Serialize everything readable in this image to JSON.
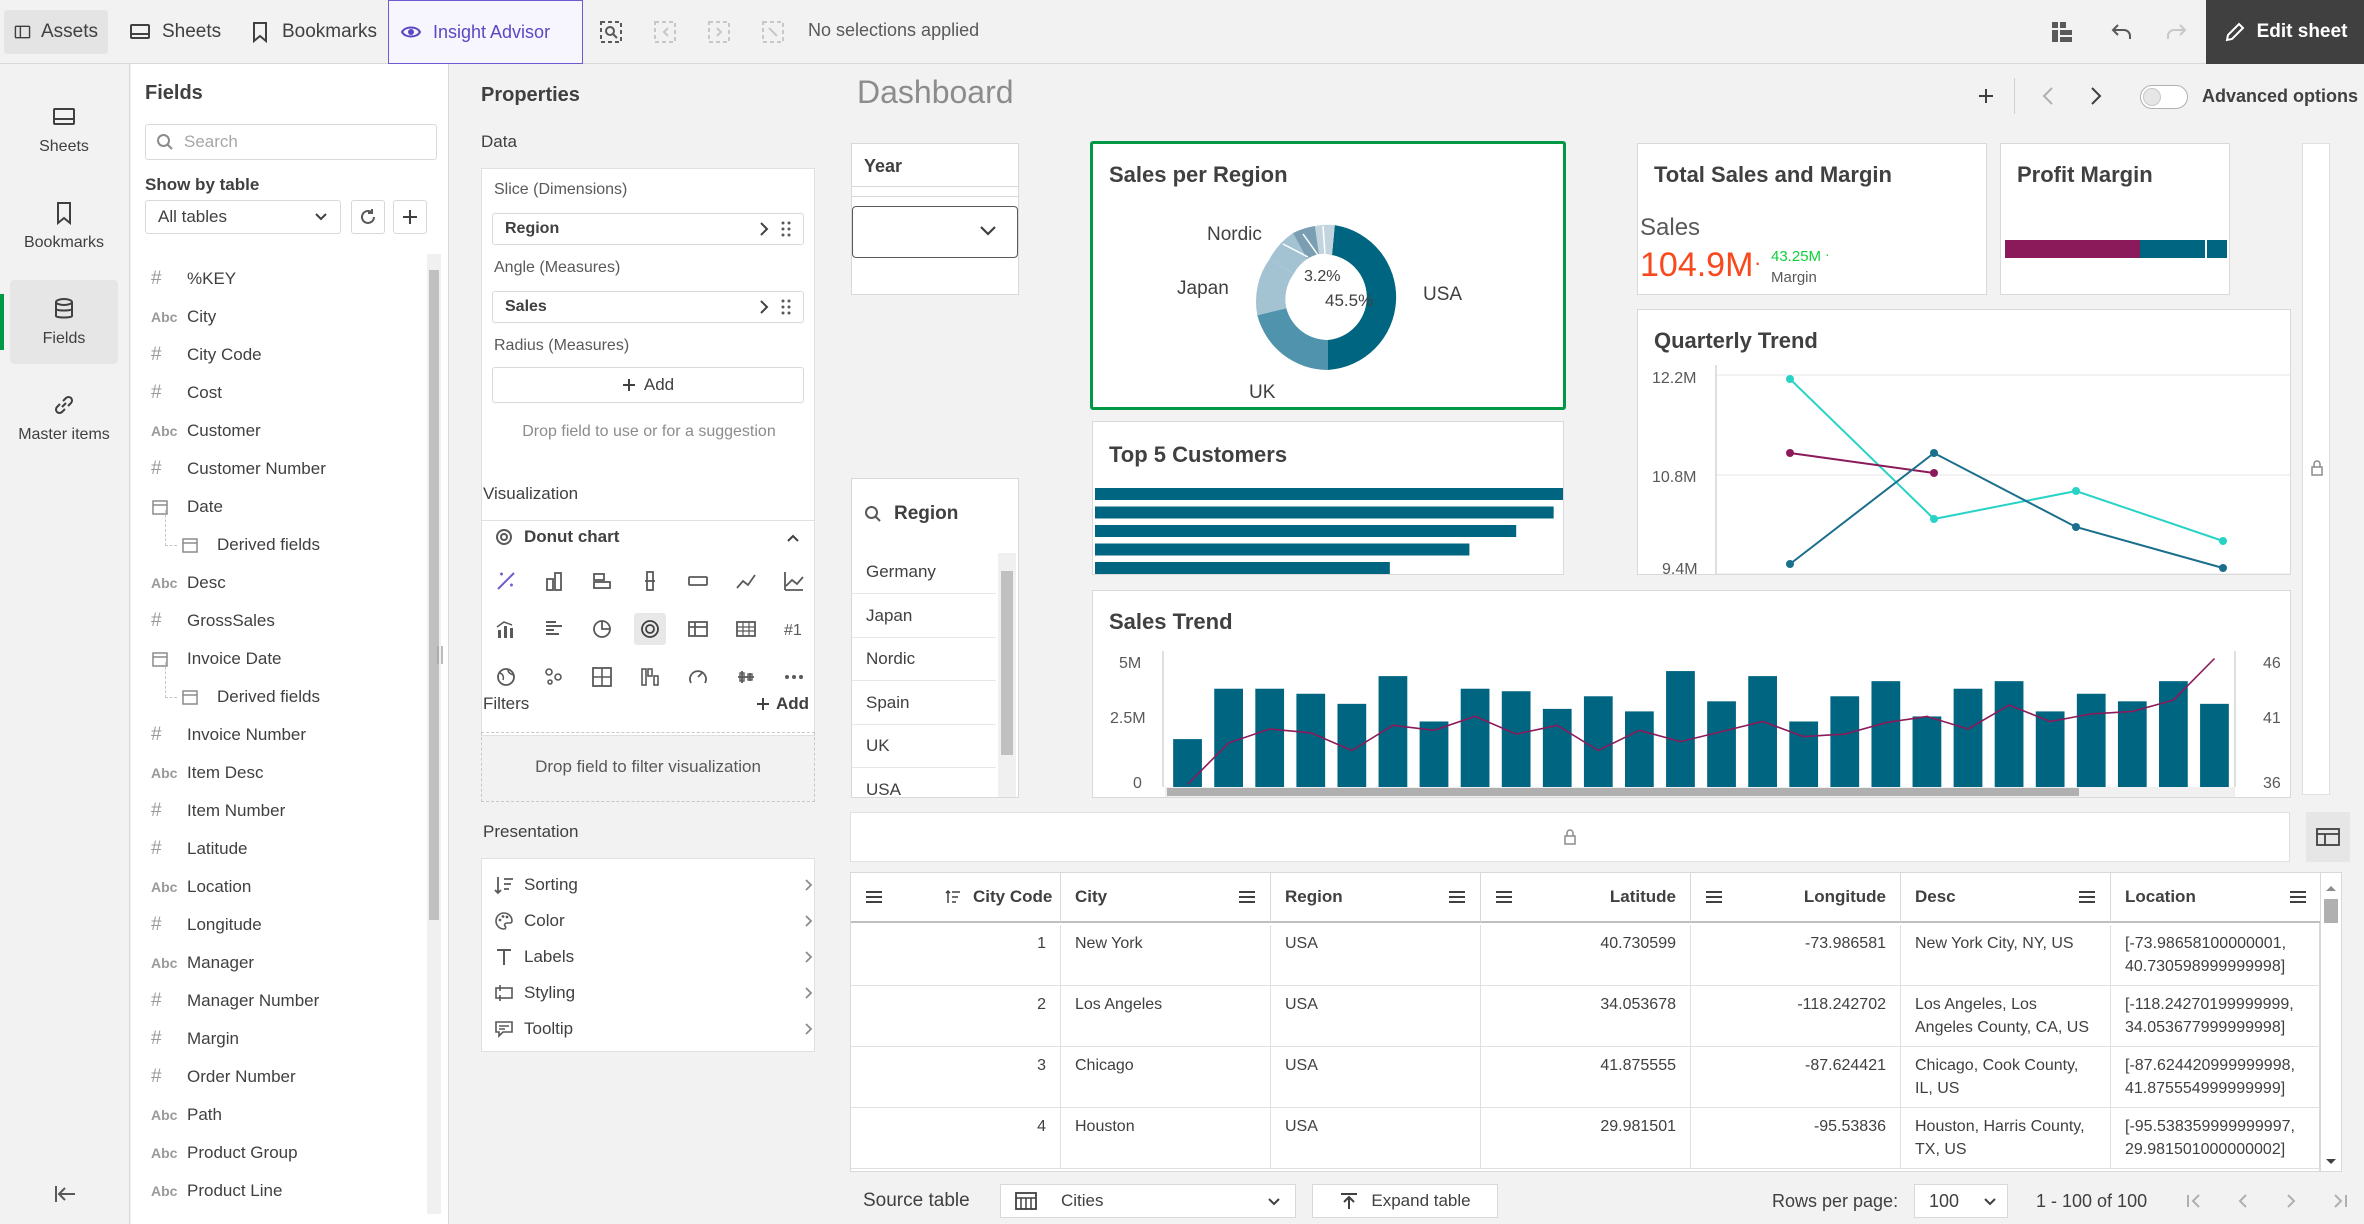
{
  "topbar": {
    "assets": "Assets",
    "sheets": "Sheets",
    "bookmarks": "Bookmarks",
    "insight": "Insight Advisor",
    "selections": "No selections applied",
    "edit_sheet": "Edit sheet"
  },
  "leftnav": {
    "sheets": "Sheets",
    "bookmarks": "Bookmarks",
    "fields": "Fields",
    "master": "Master items"
  },
  "fields_panel": {
    "title": "Fields",
    "search_placeholder": "Search",
    "show_by": "Show by table",
    "table_select": "All tables",
    "items": [
      {
        "type": "#",
        "name": "%KEY"
      },
      {
        "type": "Abc",
        "name": "City"
      },
      {
        "type": "#",
        "name": "City Code"
      },
      {
        "type": "#",
        "name": "Cost"
      },
      {
        "type": "Abc",
        "name": "Customer"
      },
      {
        "type": "#",
        "name": "Customer Number"
      },
      {
        "type": "date",
        "name": "Date"
      },
      {
        "type": "derived",
        "name": "Derived fields"
      },
      {
        "type": "Abc",
        "name": "Desc"
      },
      {
        "type": "#",
        "name": "GrossSales"
      },
      {
        "type": "date",
        "name": "Invoice Date"
      },
      {
        "type": "derived",
        "name": "Derived fields"
      },
      {
        "type": "#",
        "name": "Invoice Number"
      },
      {
        "type": "Abc",
        "name": "Item Desc"
      },
      {
        "type": "#",
        "name": "Item Number"
      },
      {
        "type": "#",
        "name": "Latitude"
      },
      {
        "type": "Abc",
        "name": "Location"
      },
      {
        "type": "#",
        "name": "Longitude"
      },
      {
        "type": "Abc",
        "name": "Manager"
      },
      {
        "type": "#",
        "name": "Manager Number"
      },
      {
        "type": "#",
        "name": "Margin"
      },
      {
        "type": "#",
        "name": "Order Number"
      },
      {
        "type": "Abc",
        "name": "Path"
      },
      {
        "type": "Abc",
        "name": "Product Group"
      },
      {
        "type": "Abc",
        "name": "Product Line"
      }
    ]
  },
  "properties": {
    "title": "Properties",
    "data_label": "Data",
    "slice_label": "Slice (Dimensions)",
    "slice_value": "Region",
    "angle_label": "Angle (Measures)",
    "angle_value": "Sales",
    "radius_label": "Radius (Measures)",
    "add": "Add",
    "drop_hint": "Drop field to use or for a suggestion",
    "visualization": "Visualization",
    "chart_type": "Donut chart",
    "filters": "Filters",
    "filters_add": "Add",
    "filter_drop": "Drop field to filter visualization",
    "presentation": "Presentation",
    "pres_items": [
      "Sorting",
      "Color",
      "Labels",
      "Styling",
      "Tooltip"
    ]
  },
  "dashboard": {
    "title": "Dashboard",
    "advanced": "Advanced options",
    "year_filter": "Year",
    "region_filter": "Region",
    "regions": [
      "Germany",
      "Japan",
      "Nordic",
      "Spain",
      "UK",
      "USA"
    ]
  },
  "donut": {
    "title": "Sales per Region",
    "labels": [
      "USA",
      "UK",
      "Japan",
      "Nordic"
    ],
    "pct_large": "45.5%",
    "pct_small": "3.2%",
    "colors": [
      "#006580",
      "#4f93ac",
      "#a3c3d3",
      "#7a9eb2"
    ]
  },
  "kpi": {
    "title": "Total Sales and Margin",
    "label": "Sales",
    "value": "104.9M",
    "value_color": "#f8481c",
    "margin_value": "43.25M",
    "margin_label": "Margin"
  },
  "profit": {
    "title": "Profit Margin"
  },
  "top5": {
    "title": "Top 5 Customers",
    "values": [
      100,
      98,
      90,
      80,
      63
    ]
  },
  "quarterly": {
    "title": "Quarterly Trend",
    "yticks": [
      "12.2M",
      "10.8M",
      "9.4M"
    ]
  },
  "sales_trend": {
    "title": "Sales Trend",
    "yleft": [
      "5M",
      "2.5M",
      "0"
    ],
    "yright": [
      "46",
      "41",
      "36"
    ],
    "bar_color": "#006580",
    "line_color": "#8b1a5a"
  },
  "table": {
    "headers": [
      "City Code",
      "City",
      "Region",
      "Latitude",
      "Longitude",
      "Desc",
      "Location"
    ],
    "rows": [
      [
        "1",
        "New York",
        "USA",
        "40.730599",
        "-73.986581",
        "New York City, NY, US",
        "[-73.98658100000001, 40.730598999999998]"
      ],
      [
        "2",
        "Los Angeles",
        "USA",
        "34.053678",
        "-118.242702",
        "Los Angeles, Los Angeles County, CA, US",
        "[-118.24270199999999, 34.053677999999998]"
      ],
      [
        "3",
        "Chicago",
        "USA",
        "41.875555",
        "-87.624421",
        "Chicago, Cook County, IL, US",
        "[-87.624420999999998, 41.875554999999999]"
      ],
      [
        "4",
        "Houston",
        "USA",
        "29.981501",
        "-95.53836",
        "Houston, Harris County, TX, US",
        "[-95.538359999999997, 29.981501000000002]"
      ]
    ]
  },
  "footer": {
    "source": "Source table",
    "table": "Cities",
    "expand": "Expand table",
    "rows_per_page": "Rows per page:",
    "rows_value": "100",
    "range": "1 - 100 of 100"
  }
}
